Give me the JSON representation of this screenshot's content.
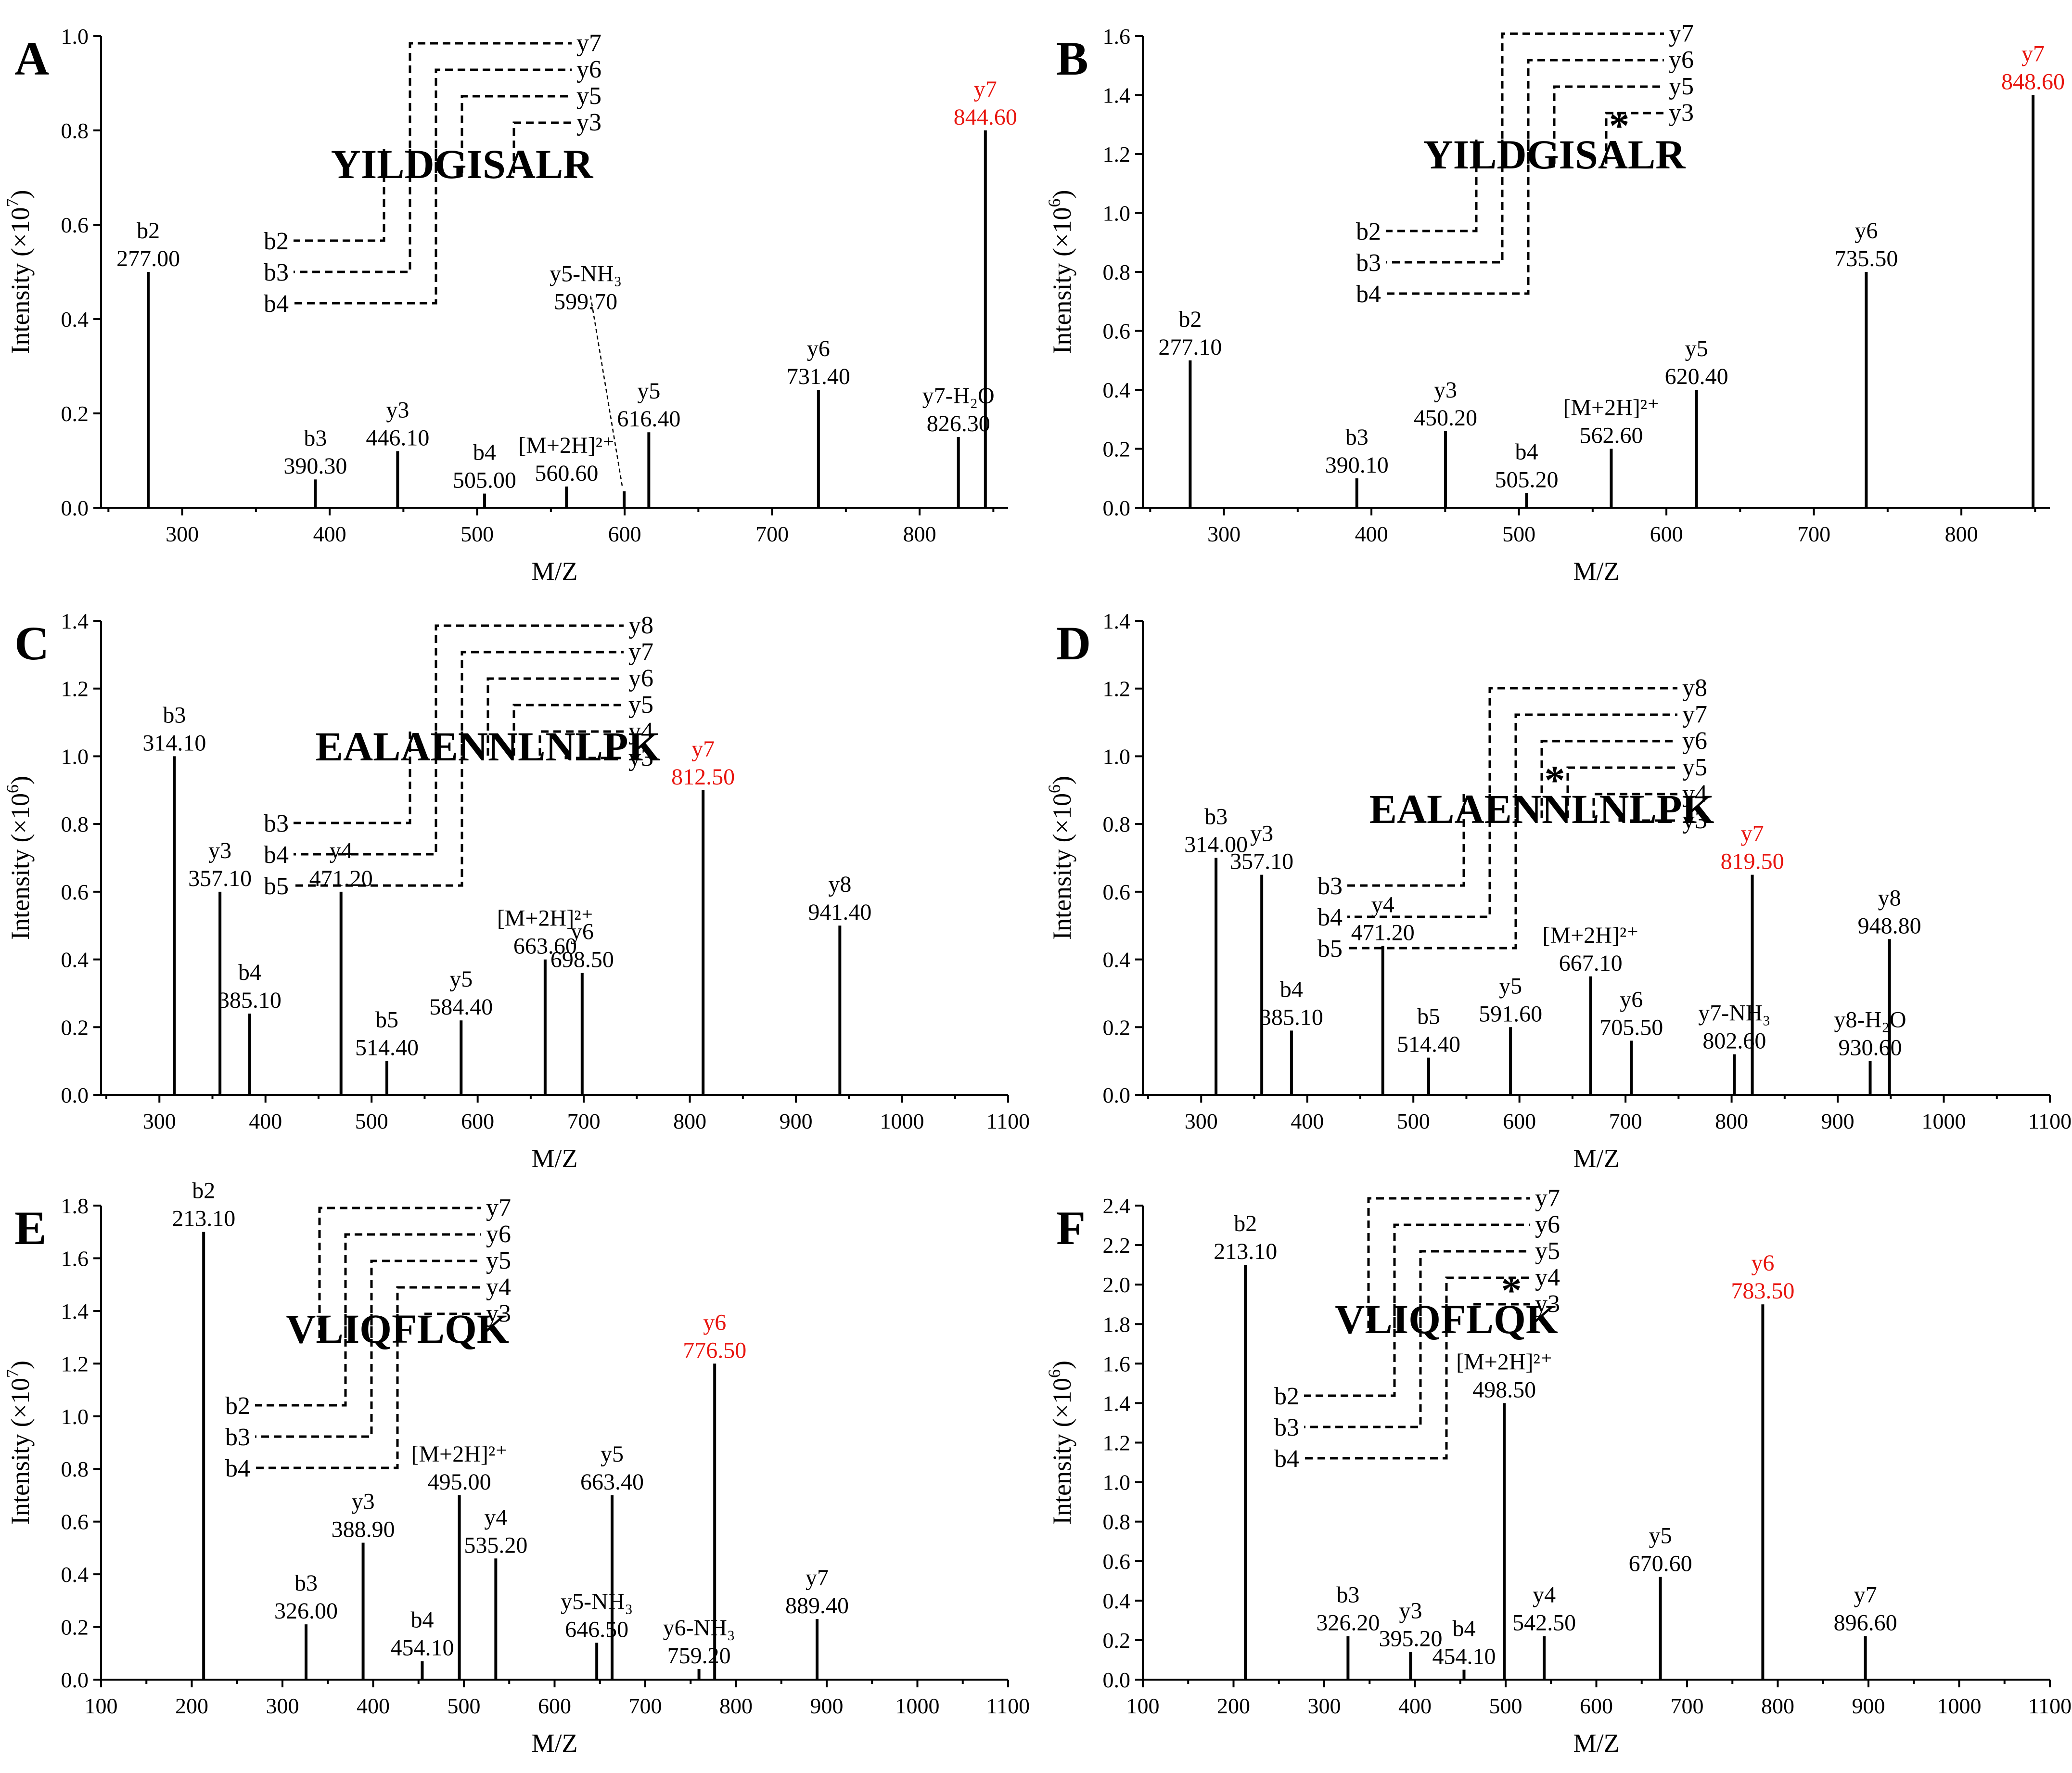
{
  "figure": {
    "axis_labels": {
      "x": "M/Z",
      "y_prefix": "Intensity"
    }
  },
  "chart_data": [
    {
      "panel": "A",
      "type": "bar",
      "title": "",
      "xlabel": "M/Z",
      "ylabel": "Intensity (×10^7)",
      "y_exponent": "7",
      "xlim": [
        245,
        860
      ],
      "ylim": [
        0,
        1.0
      ],
      "xticks": [
        300,
        400,
        500,
        600,
        700,
        800
      ],
      "yticks": [
        0.0,
        0.2,
        0.4,
        0.6,
        0.8,
        1.0
      ],
      "peptide": "YILDGISALR",
      "modified_residue_index": null,
      "y_ions": [
        "y7",
        "y6",
        "y5",
        "y3"
      ],
      "b_ions": [
        "b2",
        "b3",
        "b4"
      ],
      "peaks": [
        {
          "mz": 277.0,
          "intensity": 0.5,
          "ion": "b2",
          "label": "277.00"
        },
        {
          "mz": 390.3,
          "intensity": 0.06,
          "ion": "b3",
          "label": "390.30"
        },
        {
          "mz": 446.1,
          "intensity": 0.12,
          "ion": "y3",
          "label": "446.10"
        },
        {
          "mz": 505.0,
          "intensity": 0.03,
          "ion": "b4",
          "label": "505.00"
        },
        {
          "mz": 560.6,
          "intensity": 0.045,
          "ion": "[M+2H]²⁺",
          "label": "560.60"
        },
        {
          "mz": 599.7,
          "intensity": 0.035,
          "ion": "y5-NH₃",
          "label": "599.70"
        },
        {
          "mz": 616.4,
          "intensity": 0.16,
          "ion": "y5",
          "label": "616.40"
        },
        {
          "mz": 731.4,
          "intensity": 0.25,
          "ion": "y6",
          "label": "731.40"
        },
        {
          "mz": 826.3,
          "intensity": 0.15,
          "ion": "y7-H₂O",
          "label": "826.30"
        },
        {
          "mz": 844.6,
          "intensity": 0.8,
          "ion": "y7",
          "label": "844.60",
          "highlight": true
        }
      ]
    },
    {
      "panel": "B",
      "type": "bar",
      "title": "",
      "xlabel": "M/Z",
      "ylabel": "Intensity (×10^6)",
      "y_exponent": "6",
      "xlim": [
        245,
        860
      ],
      "ylim": [
        0,
        1.6
      ],
      "xticks": [
        300,
        400,
        500,
        600,
        700,
        800
      ],
      "yticks": [
        0.0,
        0.2,
        0.4,
        0.6,
        0.8,
        1.0,
        1.2,
        1.4,
        1.6
      ],
      "peptide": "YILDGISALR",
      "modified_residue_index": 7,
      "y_ions": [
        "y7",
        "y6",
        "y5",
        "y3"
      ],
      "b_ions": [
        "b2",
        "b3",
        "b4"
      ],
      "peaks": [
        {
          "mz": 277.1,
          "intensity": 0.5,
          "ion": "b2",
          "label": "277.10"
        },
        {
          "mz": 390.1,
          "intensity": 0.1,
          "ion": "b3",
          "label": "390.10"
        },
        {
          "mz": 450.2,
          "intensity": 0.26,
          "ion": "y3",
          "label": "450.20"
        },
        {
          "mz": 505.2,
          "intensity": 0.05,
          "ion": "b4",
          "label": "505.20"
        },
        {
          "mz": 562.6,
          "intensity": 0.2,
          "ion": "[M+2H]²⁺",
          "label": "562.60"
        },
        {
          "mz": 620.4,
          "intensity": 0.4,
          "ion": "y5",
          "label": "620.40"
        },
        {
          "mz": 735.5,
          "intensity": 0.8,
          "ion": "y6",
          "label": "735.50"
        },
        {
          "mz": 848.6,
          "intensity": 1.4,
          "ion": "y7",
          "label": "848.60",
          "highlight": true
        }
      ]
    },
    {
      "panel": "C",
      "type": "bar",
      "title": "",
      "xlabel": "M/Z",
      "ylabel": "Intensity (×10^6)",
      "y_exponent": "6",
      "xlim": [
        245,
        1100
      ],
      "ylim": [
        0,
        1.4
      ],
      "xticks": [
        300,
        400,
        500,
        600,
        700,
        800,
        900,
        1000,
        1100
      ],
      "yticks": [
        0.0,
        0.2,
        0.4,
        0.6,
        0.8,
        1.0,
        1.2,
        1.4
      ],
      "peptide": "EALAENNLNLPK",
      "modified_residue_index": null,
      "y_ions": [
        "y8",
        "y7",
        "y6",
        "y5",
        "y4",
        "y3"
      ],
      "b_ions": [
        "b3",
        "b4",
        "b5"
      ],
      "peaks": [
        {
          "mz": 314.1,
          "intensity": 1.0,
          "ion": "b3",
          "label": "314.10"
        },
        {
          "mz": 357.1,
          "intensity": 0.6,
          "ion": "y3",
          "label": "357.10"
        },
        {
          "mz": 385.1,
          "intensity": 0.24,
          "ion": "b4",
          "label": "385.10"
        },
        {
          "mz": 471.2,
          "intensity": 0.6,
          "ion": "y4",
          "label": "471.20"
        },
        {
          "mz": 514.4,
          "intensity": 0.1,
          "ion": "b5",
          "label": "514.40"
        },
        {
          "mz": 584.4,
          "intensity": 0.22,
          "ion": "y5",
          "label": "584.40"
        },
        {
          "mz": 663.6,
          "intensity": 0.4,
          "ion": "[M+2H]²⁺",
          "label": "663.60"
        },
        {
          "mz": 698.5,
          "intensity": 0.36,
          "ion": "y6",
          "label": "698.50"
        },
        {
          "mz": 812.5,
          "intensity": 0.9,
          "ion": "y7",
          "label": "812.50",
          "highlight": true
        },
        {
          "mz": 941.4,
          "intensity": 0.5,
          "ion": "y8",
          "label": "941.40"
        }
      ]
    },
    {
      "panel": "D",
      "type": "bar",
      "title": "",
      "xlabel": "M/Z",
      "ylabel": "Intensity (×10^6)",
      "y_exponent": "6",
      "xlim": [
        245,
        1100
      ],
      "ylim": [
        0,
        1.4
      ],
      "xticks": [
        300,
        400,
        500,
        600,
        700,
        800,
        900,
        1000,
        1100
      ],
      "yticks": [
        0.0,
        0.2,
        0.4,
        0.6,
        0.8,
        1.0,
        1.2,
        1.4
      ],
      "peptide": "EALAENNLNLPK",
      "modified_residue_index": 6,
      "y_ions": [
        "y8",
        "y7",
        "y6",
        "y5",
        "y4",
        "y3"
      ],
      "b_ions": [
        "b3",
        "b4",
        "b5"
      ],
      "peaks": [
        {
          "mz": 314.0,
          "intensity": 0.7,
          "ion": "b3",
          "label": "314.00"
        },
        {
          "mz": 357.1,
          "intensity": 0.65,
          "ion": "y3",
          "label": "357.10"
        },
        {
          "mz": 385.1,
          "intensity": 0.19,
          "ion": "b4",
          "label": "385.10"
        },
        {
          "mz": 471.2,
          "intensity": 0.44,
          "ion": "y4",
          "label": "471.20"
        },
        {
          "mz": 514.4,
          "intensity": 0.11,
          "ion": "b5",
          "label": "514.40"
        },
        {
          "mz": 591.6,
          "intensity": 0.2,
          "ion": "y5",
          "label": "591.60"
        },
        {
          "mz": 667.1,
          "intensity": 0.35,
          "ion": "[M+2H]²⁺",
          "label": "667.10"
        },
        {
          "mz": 705.5,
          "intensity": 0.16,
          "ion": "y6",
          "label": "705.50"
        },
        {
          "mz": 802.6,
          "intensity": 0.12,
          "ion": "y7-NH₃",
          "label": "802.60"
        },
        {
          "mz": 819.5,
          "intensity": 0.65,
          "ion": "y7",
          "label": "819.50",
          "highlight": true
        },
        {
          "mz": 930.6,
          "intensity": 0.1,
          "ion": "y8-H₂O",
          "label": "930.60"
        },
        {
          "mz": 948.8,
          "intensity": 0.46,
          "ion": "y8",
          "label": "948.80"
        }
      ]
    },
    {
      "panel": "E",
      "type": "bar",
      "title": "",
      "xlabel": "M/Z",
      "ylabel": "Intensity (×10^7)",
      "y_exponent": "7",
      "xlim": [
        100,
        1100
      ],
      "ylim": [
        0,
        1.8
      ],
      "xticks": [
        100,
        200,
        300,
        400,
        500,
        600,
        700,
        800,
        900,
        1000,
        1100
      ],
      "yticks": [
        0.0,
        0.2,
        0.4,
        0.6,
        0.8,
        1.0,
        1.2,
        1.4,
        1.6,
        1.8
      ],
      "peptide": "VLIQFLQK",
      "modified_residue_index": null,
      "y_ions": [
        "y7",
        "y6",
        "y5",
        "y4",
        "y3"
      ],
      "b_ions": [
        "b2",
        "b3",
        "b4"
      ],
      "peaks": [
        {
          "mz": 213.1,
          "intensity": 1.7,
          "ion": "b2",
          "label": "213.10"
        },
        {
          "mz": 326.0,
          "intensity": 0.21,
          "ion": "b3",
          "label": "326.00"
        },
        {
          "mz": 388.9,
          "intensity": 0.52,
          "ion": "y3",
          "label": "388.90"
        },
        {
          "mz": 454.1,
          "intensity": 0.07,
          "ion": "b4",
          "label": "454.10"
        },
        {
          "mz": 495.0,
          "intensity": 0.7,
          "ion": "[M+2H]²⁺",
          "label": "495.00"
        },
        {
          "mz": 535.2,
          "intensity": 0.46,
          "ion": "y4",
          "label": "535.20"
        },
        {
          "mz": 646.5,
          "intensity": 0.14,
          "ion": "y5-NH₃",
          "label": "646.50"
        },
        {
          "mz": 663.4,
          "intensity": 0.7,
          "ion": "y5",
          "label": "663.40"
        },
        {
          "mz": 759.2,
          "intensity": 0.04,
          "ion": "y6-NH₃",
          "label": "759.20"
        },
        {
          "mz": 776.5,
          "intensity": 1.2,
          "ion": "y6",
          "label": "776.50",
          "highlight": true
        },
        {
          "mz": 889.4,
          "intensity": 0.23,
          "ion": "y7",
          "label": "889.40"
        }
      ]
    },
    {
      "panel": "F",
      "type": "bar",
      "title": "",
      "xlabel": "M/Z",
      "ylabel": "Intensity (×10^6)",
      "y_exponent": "6",
      "xlim": [
        100,
        1100
      ],
      "ylim": [
        0,
        2.4
      ],
      "xticks": [
        100,
        200,
        300,
        400,
        500,
        600,
        700,
        800,
        900,
        1000,
        1100
      ],
      "yticks": [
        0.0,
        0.2,
        0.4,
        0.6,
        0.8,
        1.0,
        1.2,
        1.4,
        1.6,
        1.8,
        2.0,
        2.2,
        2.4
      ],
      "peptide": "VLIQFLQK",
      "modified_residue_index": 6,
      "y_ions": [
        "y7",
        "y6",
        "y5",
        "y4",
        "y3"
      ],
      "b_ions": [
        "b2",
        "b3",
        "b4"
      ],
      "peaks": [
        {
          "mz": 213.1,
          "intensity": 2.1,
          "ion": "b2",
          "label": "213.10"
        },
        {
          "mz": 326.2,
          "intensity": 0.22,
          "ion": "b3",
          "label": "326.20"
        },
        {
          "mz": 395.2,
          "intensity": 0.14,
          "ion": "y3",
          "label": "395.20"
        },
        {
          "mz": 454.1,
          "intensity": 0.05,
          "ion": "b4",
          "label": "454.10"
        },
        {
          "mz": 498.5,
          "intensity": 1.4,
          "ion": "[M+2H]²⁺",
          "label": "498.50"
        },
        {
          "mz": 542.5,
          "intensity": 0.22,
          "ion": "y4",
          "label": "542.50"
        },
        {
          "mz": 670.6,
          "intensity": 0.52,
          "ion": "y5",
          "label": "670.60"
        },
        {
          "mz": 783.5,
          "intensity": 1.9,
          "ion": "y6",
          "label": "783.50",
          "highlight": true
        },
        {
          "mz": 896.6,
          "intensity": 0.22,
          "ion": "y7",
          "label": "896.60"
        }
      ]
    }
  ]
}
